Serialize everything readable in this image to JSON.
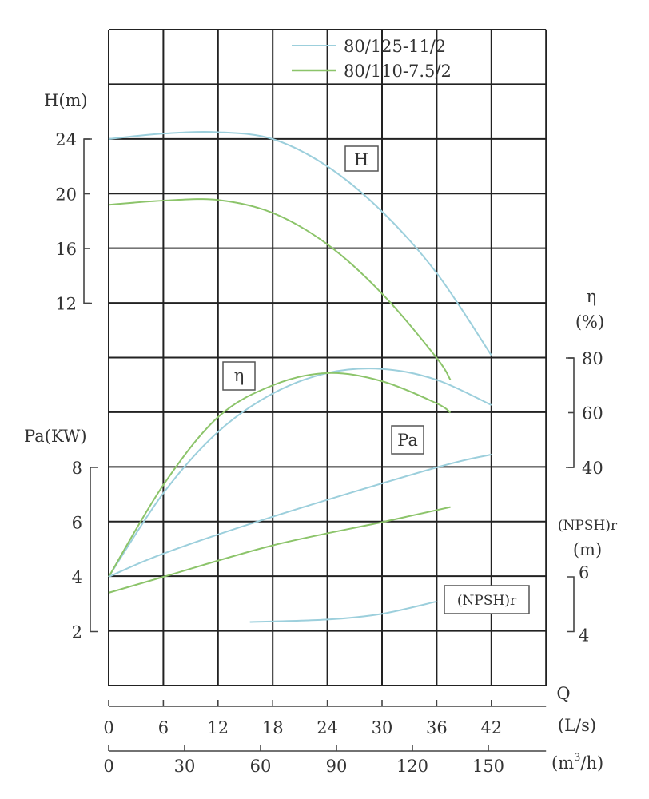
{
  "chart_data": {
    "type": "line",
    "legend": {
      "placement": "top-center",
      "entries": [
        {
          "name": "80/125-11/2",
          "color": "#9ccfdc"
        },
        {
          "name": "80/110-7.5/2",
          "color": "#8cc46a"
        }
      ]
    },
    "grid": true,
    "x_axis": {
      "label": "Q",
      "primary": {
        "unit": "(L/s)",
        "ticks": [
          0,
          6,
          12,
          18,
          24,
          30,
          36,
          42
        ],
        "range": [
          0,
          48
        ]
      },
      "secondary": {
        "unit_base": "(m",
        "unit_sup": "3",
        "unit_tail": "/h)",
        "ticks": [
          0,
          30,
          60,
          90,
          120,
          150
        ]
      }
    },
    "y_axes": {
      "H": {
        "label": "H(m)",
        "ticks": [
          24,
          20,
          16,
          12
        ]
      },
      "eta": {
        "label": "η",
        "unit": "(%)",
        "ticks": [
          80,
          60,
          40
        ]
      },
      "Pa": {
        "label": "Pa(KW)",
        "ticks": [
          8,
          6,
          4,
          2
        ]
      },
      "NPSH": {
        "label": "(NPSH)r",
        "unit": "(m)",
        "ticks": [
          6,
          4
        ]
      }
    },
    "curve_labels": {
      "H": "H",
      "eta": "η",
      "Pa": "Pa",
      "NPSH": "(NPSH)r"
    },
    "series": [
      {
        "name": "80/125-11/2",
        "curve": "H",
        "x": [
          0,
          6,
          12,
          18,
          24,
          30,
          36,
          42
        ],
        "y": [
          24,
          24.4,
          24.5,
          24,
          22,
          18.7,
          14.2,
          8.2
        ]
      },
      {
        "name": "80/110-7.5/2",
        "curve": "H",
        "x": [
          0,
          6,
          12,
          18,
          24,
          30,
          36,
          37.5
        ],
        "y": [
          19.2,
          19.5,
          19.55,
          18.6,
          16.3,
          12.7,
          8.0,
          6.4
        ]
      },
      {
        "name": "80/125-11/2",
        "curve": "eta",
        "x": [
          0,
          6,
          12,
          18,
          24,
          30,
          36,
          42
        ],
        "y": [
          0,
          30.6,
          53,
          67,
          74.5,
          76,
          72,
          62.8
        ]
      },
      {
        "name": "80/110-7.5/2",
        "curve": "eta",
        "x": [
          0,
          6,
          12,
          18,
          24,
          30,
          36,
          37.5
        ],
        "y": [
          0,
          33.6,
          58.4,
          70,
          74.5,
          71.5,
          63.4,
          60
        ]
      },
      {
        "name": "80/125-11/2",
        "curve": "Pa",
        "x": [
          0,
          6,
          18,
          36,
          42
        ],
        "y": [
          4,
          4.85,
          6.2,
          8.0,
          8.47
        ]
      },
      {
        "name": "80/110-7.5/2",
        "curve": "Pa",
        "x": [
          0,
          6,
          18,
          30,
          37.5
        ],
        "y": [
          3.42,
          4.0,
          5.15,
          6.0,
          6.55
        ]
      },
      {
        "name": "80/125-11/2",
        "curve": "NPSH",
        "x": [
          15.5,
          24,
          30,
          36
        ],
        "y": [
          4.35,
          4.44,
          4.65,
          5.1
        ]
      }
    ]
  }
}
